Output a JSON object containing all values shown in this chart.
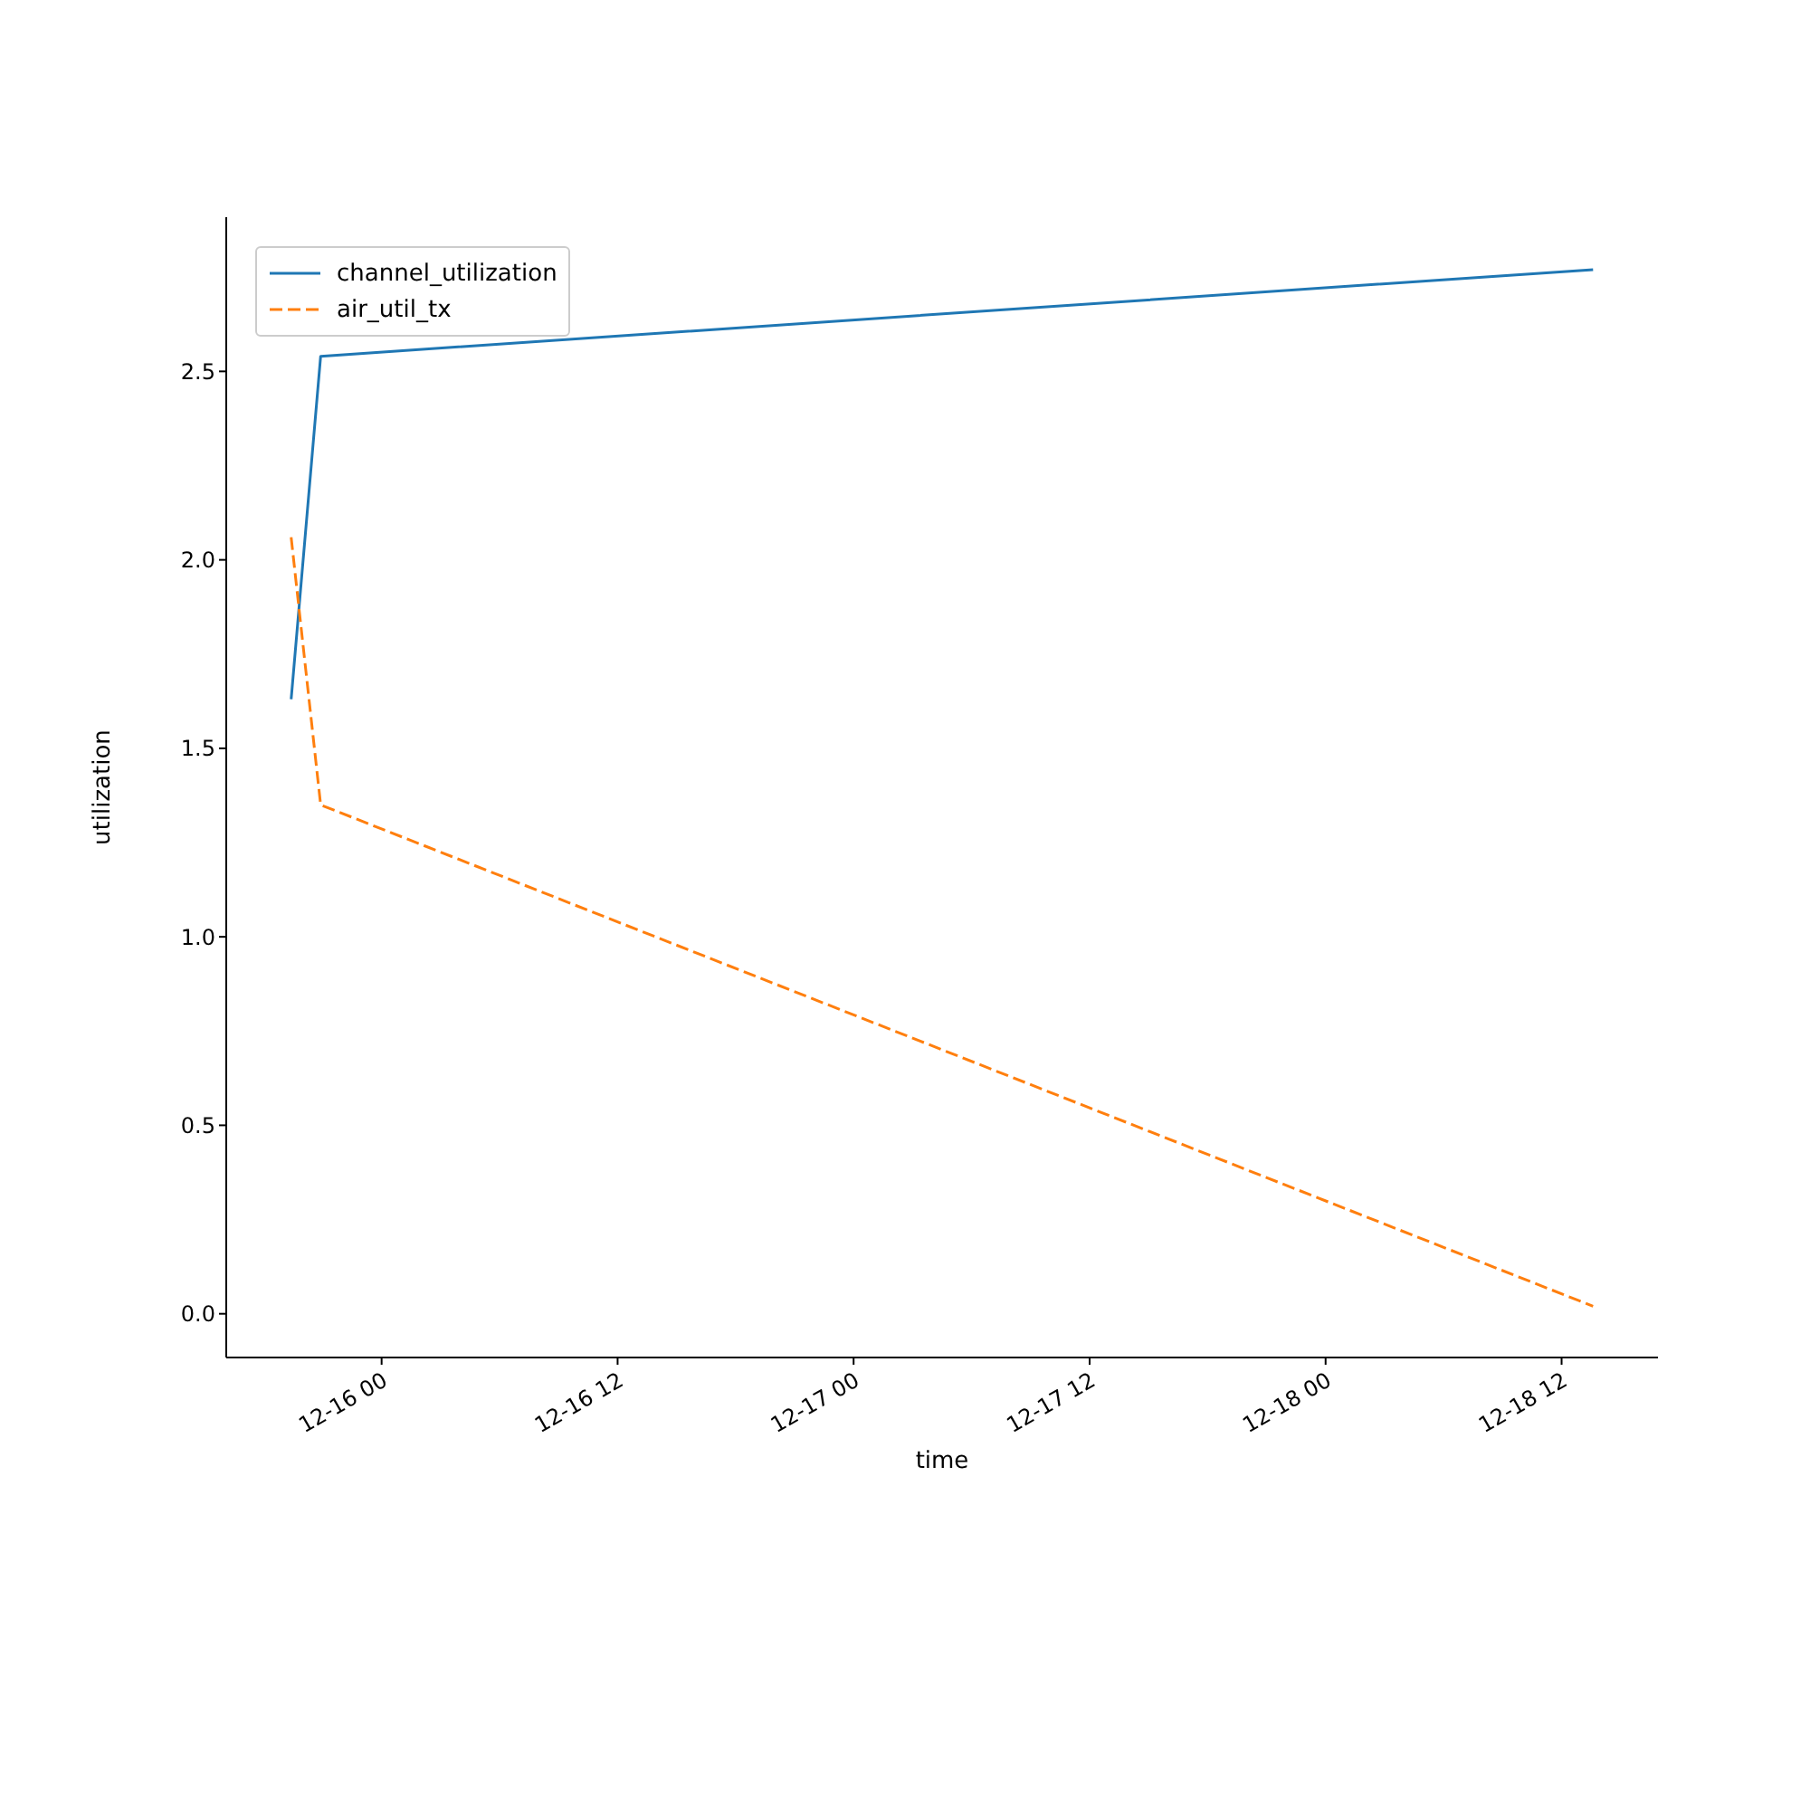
{
  "chart_data": {
    "type": "line",
    "xlabel": "time",
    "ylabel": "utilization",
    "xlim": [
      "--12-15T16:06",
      "--12-18T16:54"
    ],
    "xticks": [
      {
        "value": "--12-16T00:00",
        "label": "12-16 00"
      },
      {
        "value": "--12-16T12:00",
        "label": "12-16 12"
      },
      {
        "value": "--12-17T00:00",
        "label": "12-17 00"
      },
      {
        "value": "--12-17T12:00",
        "label": "12-17 12"
      },
      {
        "value": "--12-18T00:00",
        "label": "12-18 00"
      },
      {
        "value": "--12-18T12:00",
        "label": "12-18 12"
      }
    ],
    "ylim": [
      -0.116,
      2.909
    ],
    "yticks": [
      {
        "value": 0,
        "label": "0.0"
      },
      {
        "value": 0.5,
        "label": "0.5"
      },
      {
        "value": 1,
        "label": "1.0"
      },
      {
        "value": 1.5,
        "label": "1.5"
      },
      {
        "value": 2,
        "label": "2.0"
      },
      {
        "value": 2.5,
        "label": "2.5"
      }
    ],
    "x": [
      "--12-15T19:24",
      "--12-15T20:54",
      "--12-18T13:36"
    ],
    "series": [
      {
        "name": "channel_utilization",
        "color": "#1f77b4",
        "values": [
          1.63,
          2.54,
          2.77
        ],
        "line_style": "solid"
      },
      {
        "name": "air_util_tx",
        "color": "#ff7f0e",
        "values": [
          2.06,
          1.35,
          0.02
        ],
        "line_style": "dashed"
      }
    ],
    "legend": "top left",
    "grid": false,
    "marker": "none"
  }
}
